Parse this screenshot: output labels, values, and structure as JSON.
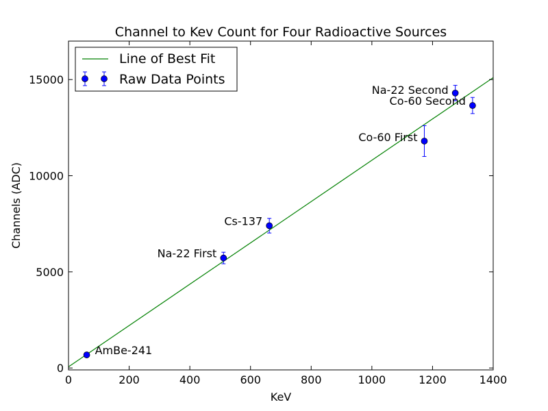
{
  "chart_data": {
    "type": "scatter",
    "title": "Channel to Kev Count for Four Radioactive Sources",
    "xlabel": "KeV",
    "ylabel": "Channels (ADC)",
    "xlim": [
      0,
      1400
    ],
    "ylim": [
      -100,
      17000
    ],
    "xticks": [
      0,
      200,
      400,
      600,
      800,
      1000,
      1200,
      1400
    ],
    "yticks": [
      0,
      5000,
      10000,
      15000
    ],
    "legend_position": "top-left",
    "series": [
      {
        "name": "Line of Best Fit",
        "kind": "line",
        "color": "#008000",
        "x": [
          0,
          1400
        ],
        "y": [
          60,
          15100
        ]
      },
      {
        "name": "Raw Data Points",
        "kind": "scatter-errorbar",
        "color": "#0000ff",
        "points": [
          {
            "label": "AmBe-241",
            "x": 60,
            "y": 680,
            "err": 80
          },
          {
            "label": "Na-22 First",
            "x": 511,
            "y": 5720,
            "err": 300
          },
          {
            "label": "Cs-137",
            "x": 662,
            "y": 7400,
            "err": 380
          },
          {
            "label": "Co-60 First",
            "x": 1173,
            "y": 11800,
            "err": 800
          },
          {
            "label": "Na-22 Second",
            "x": 1275,
            "y": 14300,
            "err": 400
          },
          {
            "label": "Co-60 Second",
            "x": 1332,
            "y": 13650,
            "err": 420
          }
        ]
      }
    ]
  }
}
